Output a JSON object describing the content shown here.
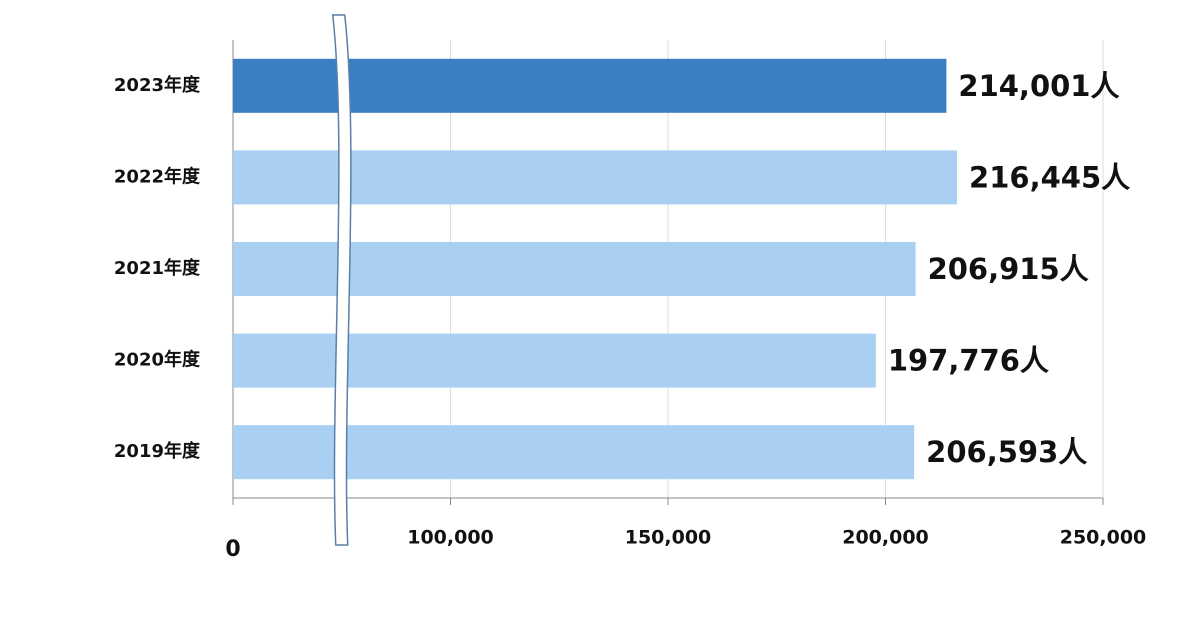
{
  "chart_data": {
    "type": "bar",
    "orientation": "horizontal",
    "categories": [
      "2023年度",
      "2022年度",
      "2021年度",
      "2020年度",
      "2019年度"
    ],
    "values": [
      214001,
      216445,
      206915,
      197776,
      206593
    ],
    "value_labels": [
      "214,001人",
      "216,445人",
      "206,915人",
      "197,776人",
      "206,593人"
    ],
    "colors": [
      "#3a7fc2",
      "#a9cff3",
      "#a9cff3",
      "#a9cff3",
      "#a9cff3"
    ],
    "xlim": [
      0,
      250000
    ],
    "axis_break": [
      0,
      50000
    ],
    "xticks": [
      0,
      {
        "value": 100000,
        "label": "100,000"
      },
      {
        "value": 150000,
        "label": "150,000"
      },
      {
        "value": 200000,
        "label": "200,000"
      },
      {
        "value": 250000,
        "label": "250,000"
      }
    ],
    "grid": true
  }
}
